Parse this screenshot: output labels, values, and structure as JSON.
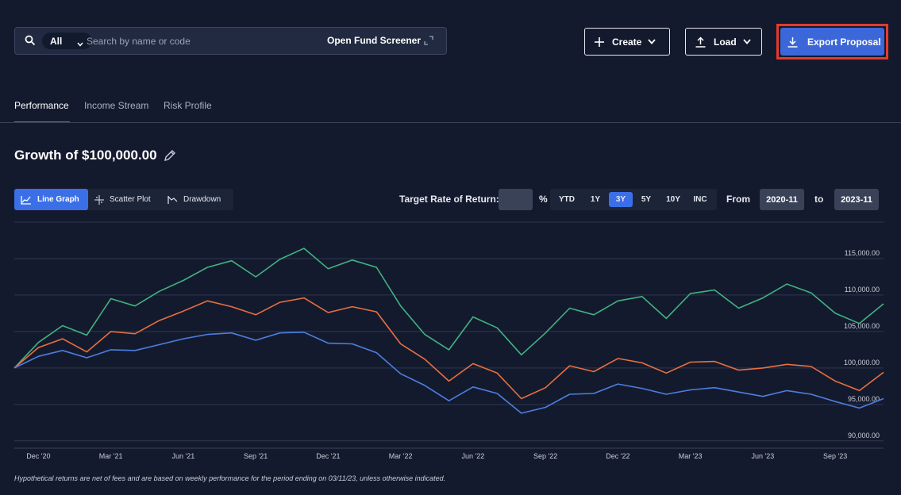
{
  "search": {
    "filter_label": "All",
    "placeholder": "Search by name or code",
    "screener_label": "Open Fund Screener"
  },
  "toolbar": {
    "create_label": "Create",
    "load_label": "Load",
    "export_label": "Export Proposal"
  },
  "tabs": [
    {
      "label": "Performance",
      "active": true
    },
    {
      "label": "Income Stream",
      "active": false
    },
    {
      "label": "Risk Profile",
      "active": false
    }
  ],
  "growth": {
    "prefix": "Growth of",
    "amount": "$100,000.00"
  },
  "view_tabs": [
    {
      "label": "Line Graph",
      "active": true,
      "icon": "line-chart-icon"
    },
    {
      "label": "Scatter Plot",
      "active": false,
      "icon": "crosshair-icon"
    },
    {
      "label": "Drawdown",
      "active": false,
      "icon": "drawdown-icon"
    }
  ],
  "controls": {
    "target_label": "Target Rate of Return:",
    "target_value": "",
    "percent": "%",
    "periods": [
      {
        "label": "YTD",
        "active": false
      },
      {
        "label": "1Y",
        "active": false
      },
      {
        "label": "3Y",
        "active": true
      },
      {
        "label": "5Y",
        "active": false
      },
      {
        "label": "10Y",
        "active": false
      },
      {
        "label": "INC",
        "active": false
      }
    ],
    "from_label": "From",
    "from_value": "2020-11",
    "to_label": "to",
    "to_value": "2023-11"
  },
  "chart_data": {
    "type": "line",
    "x": [
      "2020-11",
      "2020-12",
      "2021-01",
      "2021-02",
      "2021-03",
      "2021-04",
      "2021-05",
      "2021-06",
      "2021-07",
      "2021-08",
      "2021-09",
      "2021-10",
      "2021-11",
      "2021-12",
      "2022-01",
      "2022-02",
      "2022-03",
      "2022-04",
      "2022-05",
      "2022-06",
      "2022-07",
      "2022-08",
      "2022-09",
      "2022-10",
      "2022-11",
      "2022-12",
      "2023-01",
      "2023-02",
      "2023-03",
      "2023-04",
      "2023-05",
      "2023-06",
      "2023-07",
      "2023-08",
      "2023-09",
      "2023-10",
      "2023-11"
    ],
    "xticks": [
      "Dec '20",
      "Mar '21",
      "Jun '21",
      "Sep '21",
      "Dec '21",
      "Mar '22",
      "Jun '22",
      "Sep '22",
      "Dec '22",
      "Mar '23",
      "Jun '23",
      "Sep '23"
    ],
    "yticks": [
      "90,000.00",
      "95,000.00",
      "100,000.00",
      "105,000.00",
      "110,000.00",
      "115,000.00"
    ],
    "ylim": [
      89000,
      120000
    ],
    "grid": true,
    "series": [
      {
        "color": "#3fb37f",
        "values": [
          100000,
          103500,
          105800,
          104500,
          109500,
          108500,
          110500,
          112000,
          113800,
          114700,
          112500,
          114900,
          116400,
          113600,
          114800,
          113800,
          108500,
          104600,
          102500,
          107000,
          105500,
          101800,
          104800,
          108200,
          107300,
          109200,
          109800,
          106800,
          110200,
          110700,
          108200,
          109600,
          111500,
          110300,
          107500,
          106100,
          108800
        ]
      },
      {
        "color": "#e8703f",
        "values": [
          100000,
          102800,
          104000,
          102200,
          105000,
          104700,
          106500,
          107800,
          109200,
          108400,
          107300,
          109000,
          109600,
          107600,
          108400,
          107700,
          103300,
          101200,
          98200,
          100600,
          99300,
          95800,
          97300,
          100300,
          99500,
          101300,
          100700,
          99300,
          100800,
          100900,
          99700,
          100000,
          100500,
          100200,
          98200,
          96900,
          99400
        ]
      },
      {
        "color": "#4a7fe0",
        "values": [
          100000,
          101600,
          102400,
          101400,
          102500,
          102400,
          103200,
          104000,
          104600,
          104800,
          103800,
          104800,
          104900,
          103400,
          103300,
          102100,
          99200,
          97600,
          95500,
          97400,
          96500,
          93800,
          94600,
          96400,
          96500,
          97800,
          97200,
          96400,
          97000,
          97300,
          96700,
          96100,
          96900,
          96400,
          95400,
          94500,
          95800
        ]
      }
    ]
  },
  "footnote": "Hypothetical returns are net of fees and are based on weekly performance for the period ending on 03/11/23, unless otherwise indicated."
}
